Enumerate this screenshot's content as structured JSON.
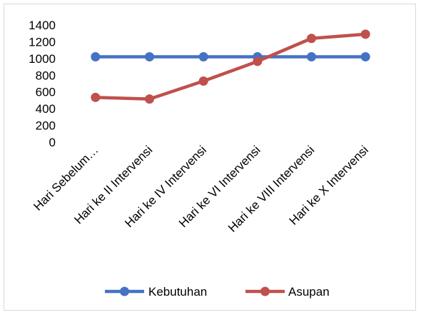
{
  "chart_data": {
    "type": "line",
    "categories": [
      "Hari Sebelum…",
      "Hari ke II Intervensi",
      "Hari ke IV Intervensi",
      "Hari ke VI Intervensi",
      "Hari ke VIII Intervensi",
      "Hari ke X Intervensi"
    ],
    "series": [
      {
        "name": "Kebutuhan",
        "values": [
          1020,
          1020,
          1020,
          1020,
          1020,
          1020
        ],
        "color": "#4472c4"
      },
      {
        "name": "Asupan",
        "values": [
          535,
          515,
          730,
          965,
          1240,
          1290
        ],
        "color": "#c0504d"
      }
    ],
    "ylim": [
      0,
      1400
    ],
    "yticks": [
      0,
      200,
      400,
      600,
      800,
      1000,
      1200,
      1400
    ],
    "grid": false,
    "legend": "bottom"
  }
}
